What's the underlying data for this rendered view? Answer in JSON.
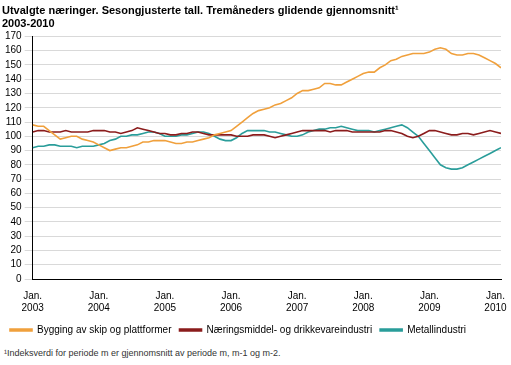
{
  "chart_data": {
    "type": "line",
    "title": "Utvalgte næringer. Sesongjusterte tall. Tremåneders glidende gjennomsnitt¹",
    "subtitle": "2003-2010",
    "footnote": "¹Indeksverdi for periode m er gjennomsnitt av periode m, m-1 og m-2.",
    "categories": [
      "Jan. 2003",
      null,
      null,
      null,
      null,
      null,
      null,
      null,
      null,
      null,
      null,
      null,
      "Jan. 2004",
      null,
      null,
      null,
      null,
      null,
      null,
      null,
      null,
      null,
      null,
      null,
      "Jan. 2005",
      null,
      null,
      null,
      null,
      null,
      null,
      null,
      null,
      null,
      null,
      null,
      "Jan. 2006",
      null,
      null,
      null,
      null,
      null,
      null,
      null,
      null,
      null,
      null,
      null,
      "Jan. 2007",
      null,
      null,
      null,
      null,
      null,
      null,
      null,
      null,
      null,
      null,
      null,
      "Jan. 2008",
      null,
      null,
      null,
      null,
      null,
      null,
      null,
      null,
      null,
      null,
      null,
      "Jan. 2009",
      null,
      null,
      null,
      null,
      null,
      null,
      null,
      null,
      null,
      null,
      null,
      "Jan. 2010",
      null
    ],
    "series": [
      {
        "name": "Bygging av skip og plattformer",
        "color": "#f0a03c",
        "values": [
          108,
          107,
          107,
          104,
          101,
          98,
          99,
          100,
          100,
          98,
          97,
          96,
          94,
          92,
          90,
          91,
          92,
          92,
          93,
          94,
          96,
          96,
          97,
          97,
          97,
          96,
          95,
          95,
          96,
          96,
          97,
          98,
          99,
          101,
          102,
          103,
          104,
          107,
          110,
          113,
          116,
          118,
          119,
          120,
          122,
          123,
          125,
          127,
          130,
          132,
          132,
          133,
          134,
          137,
          137,
          136,
          136,
          138,
          140,
          142,
          144,
          145,
          145,
          148,
          150,
          153,
          154,
          156,
          157,
          158,
          158,
          158,
          159,
          161,
          162,
          161,
          158,
          157,
          157,
          158,
          158,
          157,
          155,
          153,
          151,
          148
        ]
      },
      {
        "name": "Næringsmiddel- og drikkevareindustri",
        "color": "#8b1c1c",
        "values": [
          103,
          104,
          104,
          103,
          103,
          103,
          104,
          103,
          103,
          103,
          103,
          104,
          104,
          104,
          103,
          103,
          102,
          103,
          104,
          106,
          105,
          104,
          103,
          102,
          102,
          101,
          101,
          102,
          102,
          103,
          103,
          102,
          101,
          101,
          101,
          101,
          101,
          100,
          100,
          100,
          101,
          101,
          101,
          100,
          99,
          100,
          101,
          102,
          103,
          104,
          104,
          104,
          104,
          104,
          103,
          104,
          104,
          104,
          103,
          103,
          103,
          103,
          103,
          103,
          104,
          104,
          103,
          102,
          100,
          99,
          100,
          102,
          104,
          104,
          103,
          102,
          101,
          101,
          102,
          102,
          101,
          102,
          103,
          104,
          103,
          102
        ]
      },
      {
        "name": "Metallindustri",
        "color": "#2a9d9a",
        "values": [
          92,
          93,
          93,
          94,
          94,
          93,
          93,
          93,
          92,
          93,
          93,
          93,
          94,
          95,
          97,
          98,
          100,
          100,
          101,
          101,
          102,
          103,
          103,
          102,
          100,
          100,
          100,
          101,
          101,
          102,
          103,
          103,
          102,
          100,
          98,
          97,
          97,
          99,
          102,
          104,
          104,
          104,
          104,
          103,
          103,
          102,
          101,
          100,
          100,
          101,
          103,
          104,
          105,
          105,
          106,
          106,
          107,
          106,
          105,
          104,
          104,
          104,
          103,
          104,
          105,
          106,
          107,
          108,
          106,
          103,
          100,
          95,
          90,
          85,
          80,
          78,
          77,
          77,
          78,
          80,
          82,
          84,
          86,
          88,
          90,
          92
        ]
      }
    ],
    "ylim": [
      0,
      170
    ],
    "yticks": [
      0,
      10,
      20,
      30,
      40,
      50,
      60,
      70,
      80,
      90,
      100,
      110,
      120,
      130,
      140,
      150,
      160,
      170
    ],
    "grid": "y",
    "legend": "bottom"
  }
}
